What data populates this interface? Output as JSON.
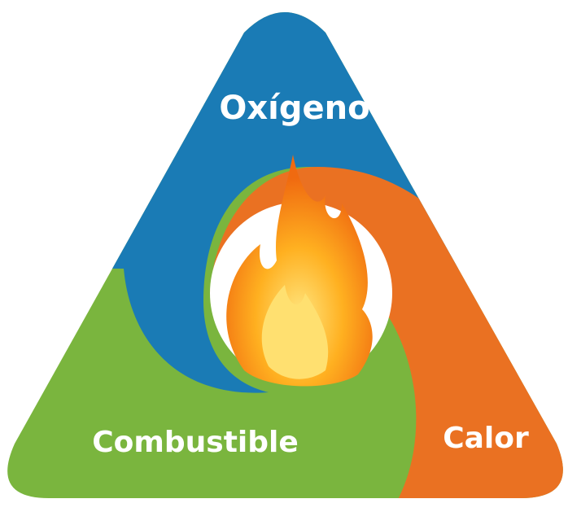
{
  "nodes": [
    {
      "label": "Oxígeno"
    },
    {
      "label": "Combustible"
    },
    {
      "label": "Calor"
    }
  ]
}
